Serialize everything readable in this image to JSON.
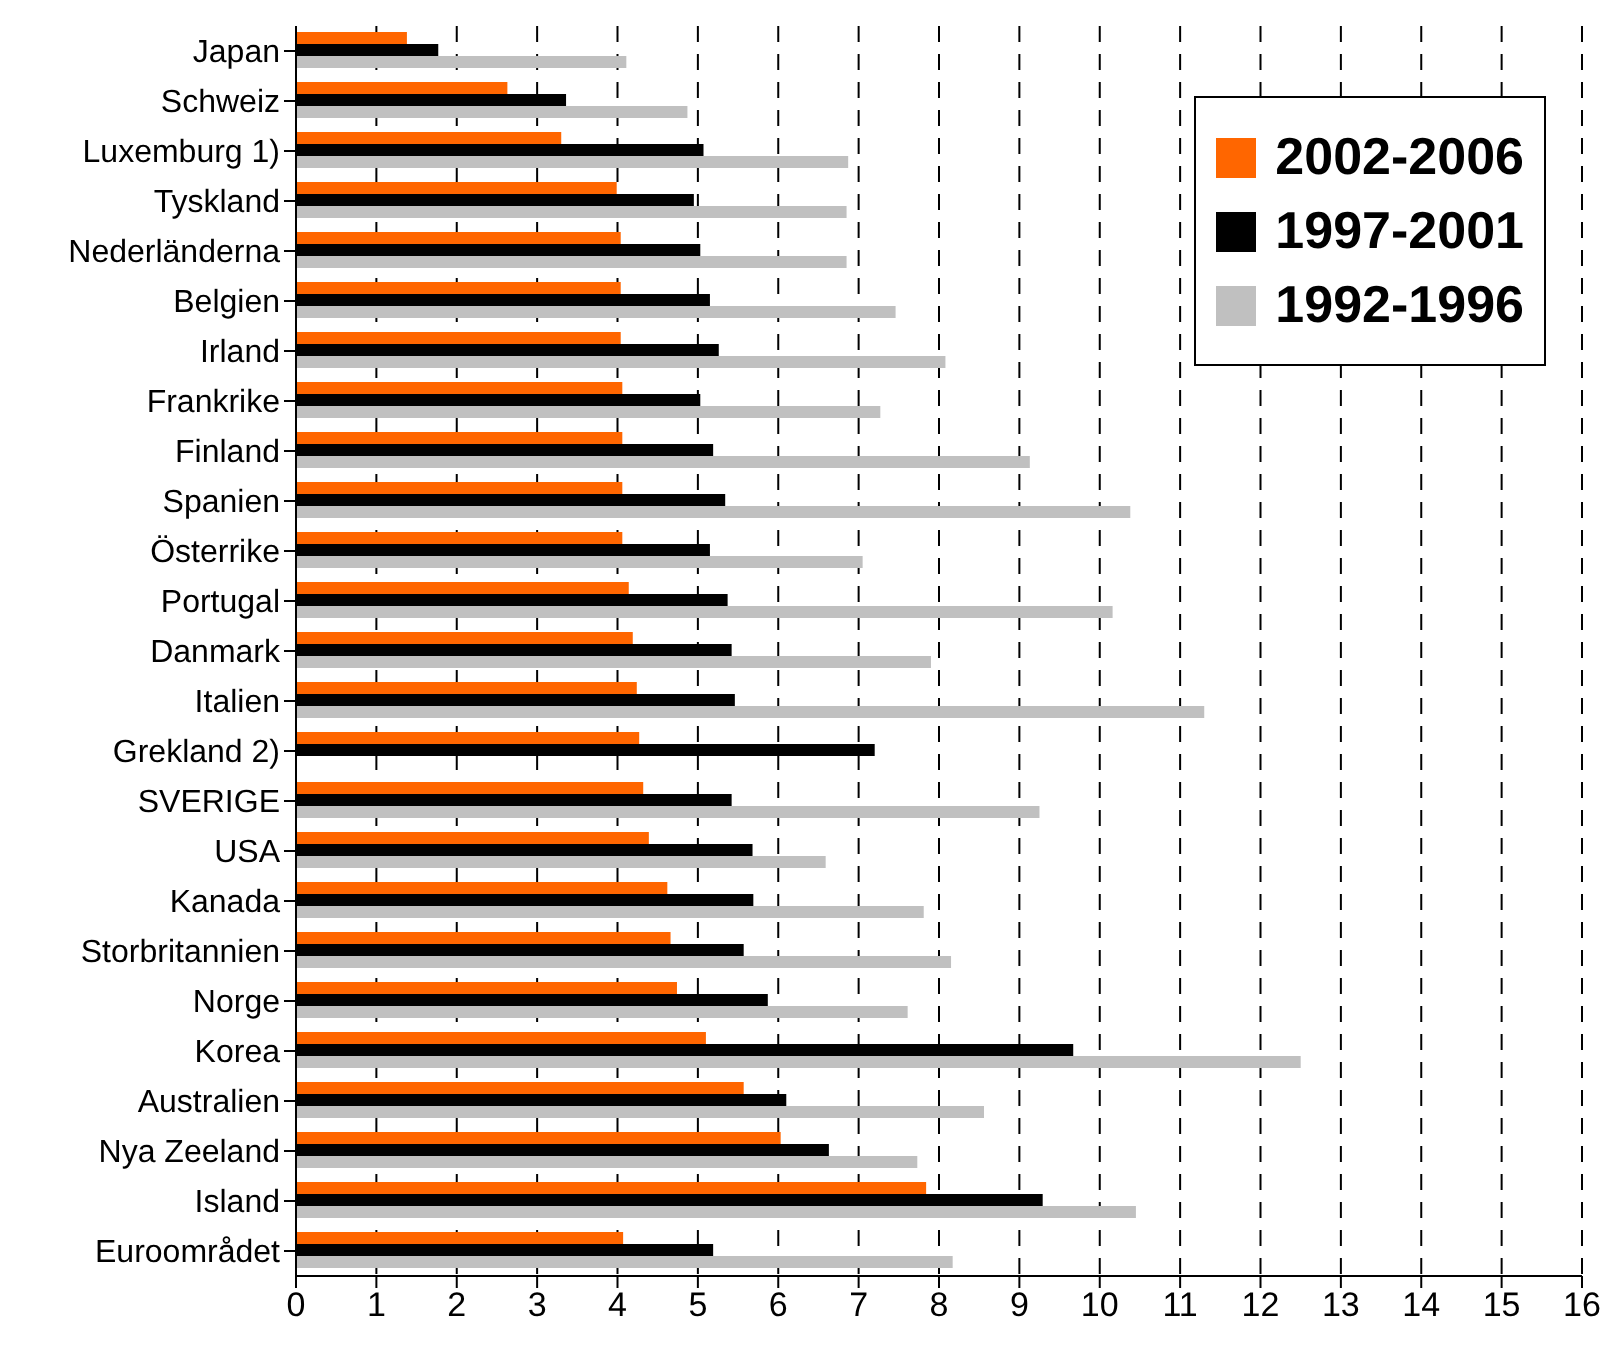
{
  "chart_data": {
    "type": "bar",
    "orientation": "horizontal",
    "categories": [
      "Japan",
      "Schweiz",
      "Luxemburg 1)",
      "Tyskland",
      "Nederländerna",
      "Belgien",
      "Irland",
      "Frankrike",
      "Finland",
      "Spanien",
      "Österrike",
      "Portugal",
      "Danmark",
      "Italien",
      "Grekland 2)",
      "SVERIGE",
      "USA",
      "Kanada",
      "Storbritannien",
      "Norge",
      "Korea",
      "Australien",
      "Nya Zeeland",
      "Island",
      "Euroområdet"
    ],
    "series": [
      {
        "name": "2002-2006",
        "color": "#ff6600",
        "values": [
          1.38,
          2.63,
          3.3,
          3.99,
          4.04,
          4.04,
          4.04,
          4.06,
          4.06,
          4.06,
          4.06,
          4.14,
          4.19,
          4.24,
          4.27,
          4.32,
          4.39,
          4.62,
          4.66,
          4.74,
          5.1,
          5.57,
          6.03,
          7.84,
          4.07
        ]
      },
      {
        "name": "1997-2001",
        "color": "#000000",
        "values": [
          1.77,
          3.36,
          5.07,
          4.95,
          5.03,
          5.15,
          5.26,
          5.03,
          5.19,
          5.34,
          5.15,
          5.37,
          5.42,
          5.46,
          7.2,
          5.42,
          5.68,
          5.69,
          5.57,
          5.87,
          9.67,
          6.1,
          6.63,
          9.29,
          5.19
        ]
      },
      {
        "name": "1992-1996",
        "color": "#c0c0c0",
        "values": [
          4.11,
          4.87,
          6.87,
          6.85,
          6.85,
          7.46,
          8.08,
          7.27,
          9.13,
          10.38,
          7.05,
          10.16,
          7.9,
          11.3,
          null,
          9.25,
          6.59,
          7.81,
          8.15,
          7.61,
          12.5,
          8.56,
          7.73,
          10.45,
          8.17
        ]
      }
    ],
    "xlim": [
      0,
      16
    ],
    "xticks": [
      0,
      1,
      2,
      3,
      4,
      5,
      6,
      7,
      8,
      9,
      10,
      11,
      12,
      13,
      14,
      15,
      16
    ],
    "grid": "x",
    "legend": "top right"
  }
}
